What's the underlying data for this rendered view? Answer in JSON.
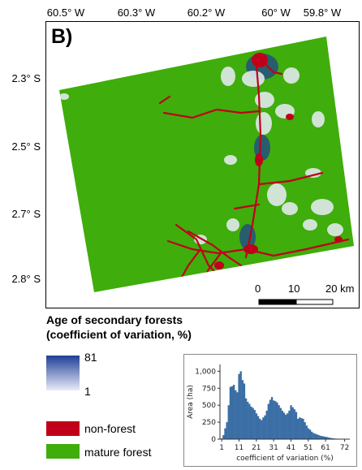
{
  "map": {
    "panel_label": "B)",
    "lon_ticks": [
      "60.5° W",
      "60.3° W",
      "60.2° W",
      "60° W",
      "59.8° W"
    ],
    "lat_ticks": [
      "2.3° S",
      "2.5° S",
      "2.7° S",
      "2.8° S"
    ],
    "scale_bar": {
      "labels": [
        "0",
        "10",
        "20 km"
      ],
      "unit": "km"
    },
    "colors": {
      "mature_forest": "#3fad0b",
      "non_forest": "#c0001a",
      "secondary_high": "#1f3f96",
      "secondary_low": "#e9ecf8"
    }
  },
  "legend": {
    "title_line1": "Age of secondary forests",
    "title_line2": "(coefficient of variation, %)",
    "gradient_max": "81",
    "gradient_min": "1",
    "non_forest_label": "non-forest",
    "mature_forest_label": "mature forest"
  },
  "chart_data": {
    "type": "bar",
    "xlabel": "coefficient of variation (%)",
    "ylabel": "Area (ha)",
    "x_ticks": [
      "1",
      "11",
      "21",
      "31",
      "41",
      "51",
      "61",
      "72"
    ],
    "y_ticks": [
      "0",
      "250",
      "500",
      "750",
      "1,000"
    ],
    "ylim": [
      0,
      1100
    ],
    "xlim": [
      0,
      75
    ],
    "bar_color": "#3a6ea5",
    "x": [
      1,
      2,
      3,
      4,
      5,
      6,
      7,
      8,
      9,
      10,
      11,
      12,
      13,
      14,
      15,
      16,
      17,
      18,
      19,
      20,
      21,
      22,
      23,
      24,
      25,
      26,
      27,
      28,
      29,
      30,
      31,
      32,
      33,
      34,
      35,
      36,
      37,
      38,
      39,
      40,
      41,
      42,
      43,
      44,
      45,
      46,
      47,
      48,
      49,
      50,
      51,
      52,
      53,
      54,
      55,
      56,
      57,
      58,
      59,
      60,
      61,
      62,
      63,
      64,
      65,
      66,
      67,
      68,
      69,
      70,
      71,
      72
    ],
    "values": [
      10,
      60,
      160,
      250,
      500,
      770,
      780,
      800,
      720,
      690,
      960,
      1000,
      870,
      820,
      600,
      550,
      520,
      480,
      460,
      430,
      380,
      340,
      300,
      280,
      320,
      350,
      420,
      520,
      580,
      620,
      570,
      560,
      540,
      500,
      460,
      420,
      390,
      360,
      380,
      420,
      500,
      470,
      440,
      400,
      300,
      320,
      310,
      300,
      250,
      200,
      160,
      140,
      110,
      90,
      80,
      70,
      60,
      50,
      45,
      40,
      35,
      30,
      22,
      18,
      14,
      10,
      8,
      6,
      5,
      4,
      3,
      2
    ]
  }
}
